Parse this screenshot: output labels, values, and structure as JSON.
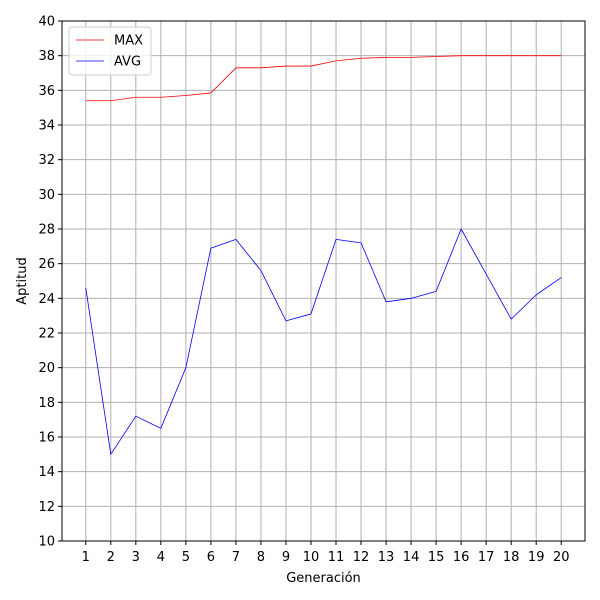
{
  "chart_data": {
    "type": "line",
    "title": "",
    "xlabel": "Generación",
    "ylabel": "Aptitud",
    "x": [
      1,
      2,
      3,
      4,
      5,
      6,
      7,
      8,
      9,
      10,
      11,
      12,
      13,
      14,
      15,
      16,
      17,
      18,
      19,
      20
    ],
    "xlim": [
      0.05,
      20.95
    ],
    "ylim": [
      10,
      40
    ],
    "yticks": [
      10,
      12,
      14,
      16,
      18,
      20,
      22,
      24,
      26,
      28,
      30,
      32,
      34,
      36,
      38,
      40
    ],
    "grid": true,
    "legend_position": "top-left",
    "series": [
      {
        "name": "MAX",
        "color": "#ff0000",
        "values": [
          35.4,
          35.4,
          35.6,
          35.6,
          35.7,
          35.85,
          37.3,
          37.3,
          37.4,
          37.4,
          37.7,
          37.85,
          37.9,
          37.9,
          37.95,
          38.0,
          38.0,
          38.0,
          38.0,
          38.0
        ]
      },
      {
        "name": "AVG",
        "color": "#0000ff",
        "values": [
          24.6,
          15.0,
          17.2,
          16.5,
          20.0,
          26.9,
          27.4,
          25.6,
          22.7,
          23.1,
          27.4,
          27.2,
          23.8,
          24.0,
          24.4,
          28.0,
          25.4,
          22.8,
          24.2,
          25.2
        ]
      }
    ]
  }
}
